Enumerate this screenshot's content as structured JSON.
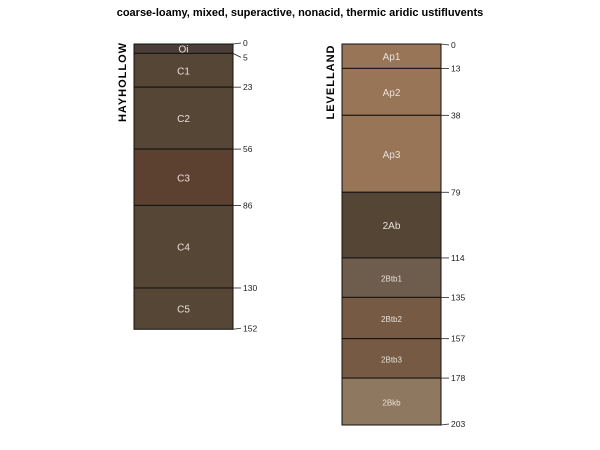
{
  "title": "coarse-loamy, mixed, superactive, nonacid, thermic aridic ustifluvents",
  "profiles": [
    {
      "name": "HAYHOLLOW",
      "horizons": [
        {
          "name": "Oi",
          "top": 0,
          "bottom": 5,
          "color": "#4a3f38"
        },
        {
          "name": "C1",
          "top": 5,
          "bottom": 23,
          "color": "#564636"
        },
        {
          "name": "C2",
          "top": 23,
          "bottom": 56,
          "color": "#564636"
        },
        {
          "name": "C3",
          "top": 56,
          "bottom": 86,
          "color": "#5c4030"
        },
        {
          "name": "C4",
          "top": 86,
          "bottom": 130,
          "color": "#564636"
        },
        {
          "name": "C5",
          "top": 130,
          "bottom": 152,
          "color": "#564636"
        }
      ],
      "depth_labels": [
        "0",
        "5",
        "23",
        "56",
        "86",
        "130",
        "152"
      ]
    },
    {
      "name": "LEVELLAND",
      "horizons": [
        {
          "name": "Ap1",
          "top": 0,
          "bottom": 13,
          "color": "#977556"
        },
        {
          "name": "Ap2",
          "top": 13,
          "bottom": 38,
          "color": "#977556"
        },
        {
          "name": "Ap3",
          "top": 38,
          "bottom": 79,
          "color": "#977556"
        },
        {
          "name": "2Ab",
          "top": 79,
          "bottom": 114,
          "color": "#554535"
        },
        {
          "name": "2Btb1",
          "top": 114,
          "bottom": 135,
          "color": "#6e5c4c"
        },
        {
          "name": "2Btb2",
          "top": 135,
          "bottom": 157,
          "color": "#765a44"
        },
        {
          "name": "2Btb3",
          "top": 157,
          "bottom": 178,
          "color": "#765a44"
        },
        {
          "name": "2Bkb",
          "top": 178,
          "bottom": 203,
          "color": "#8e7860"
        }
      ],
      "depth_labels": [
        "0",
        "13",
        "38",
        "79",
        "114",
        "135",
        "157",
        "178",
        "203"
      ]
    }
  ]
}
